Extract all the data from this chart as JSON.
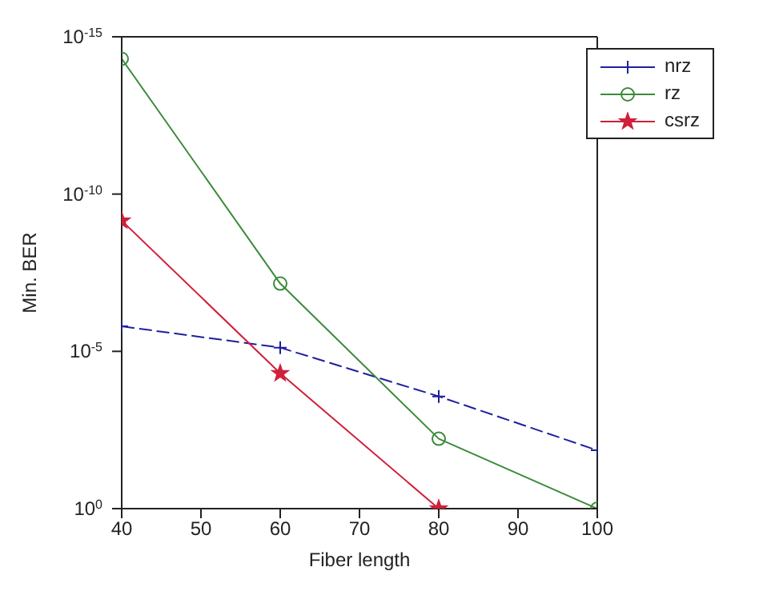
{
  "chart_data": {
    "type": "line",
    "xlabel": "Fiber length",
    "ylabel": "Min. BER",
    "x": [
      40,
      60,
      80,
      100
    ],
    "series": [
      {
        "name": "nrz",
        "color": "#1f1f9f",
        "values": [
          1.6e-06,
          7.6e-06,
          0.00027,
          0.014
        ],
        "marker": "cross",
        "line_style": "dashed"
      },
      {
        "name": "rz",
        "color": "#3a8a3a",
        "values": [
          5e-15,
          7e-08,
          0.006,
          1
        ],
        "marker": "circle",
        "line_style": "solid"
      },
      {
        "name": "csrz",
        "color": "#d0203a",
        "values": [
          7e-10,
          5e-05,
          1,
          null
        ],
        "marker": "star",
        "line_style": "solid"
      }
    ],
    "log": "y",
    "xlim": [
      40,
      100
    ],
    "xticks": [
      40,
      50,
      60,
      70,
      80,
      90,
      100
    ],
    "ylim": [
      1,
      1e-15
    ],
    "yticks": [
      {
        "value": 1e-15,
        "label": "10$^{-15}$"
      },
      {
        "value": 1e-10,
        "label": "10$^{-10}$"
      },
      {
        "value": 1e-05,
        "label": "10$^{-5}$"
      },
      {
        "value": 1,
        "label": "10$^{0}$"
      }
    ],
    "grid": false,
    "legend": "top right"
  }
}
